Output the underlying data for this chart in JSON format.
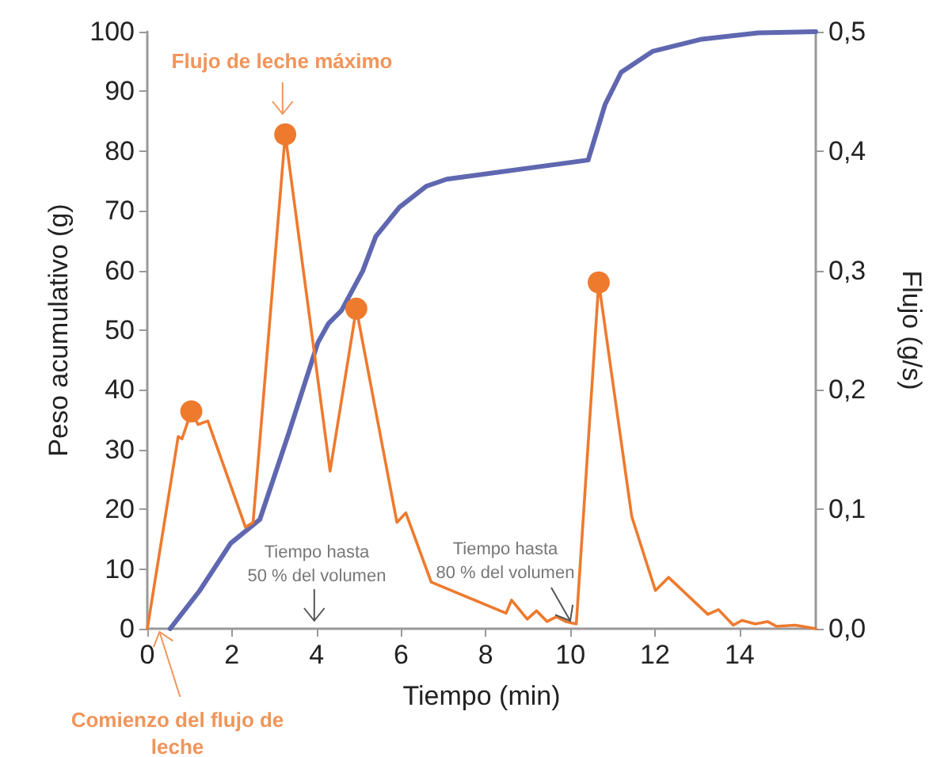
{
  "chart_data": {
    "type": "line",
    "xlabel": "Tiempo (min)",
    "ylabel": "Peso acumulativo (g)",
    "y2label": "Flujo (g/s)",
    "xlim": [
      0,
      15.8
    ],
    "xticks": [
      0,
      2,
      4,
      6,
      8,
      10,
      12,
      14
    ],
    "ylim": [
      0,
      100
    ],
    "yticks": [
      0,
      10,
      20,
      30,
      40,
      50,
      60,
      70,
      80,
      90,
      100
    ],
    "y2lim": [
      0,
      0.5
    ],
    "y2ticks": [
      {
        "value": 0,
        "label": "0,0"
      },
      {
        "value": 0.1,
        "label": "0,1"
      },
      {
        "value": 0.2,
        "label": "0,2"
      },
      {
        "value": 0.3,
        "label": "0,3"
      },
      {
        "value": 0.4,
        "label": "0,4"
      },
      {
        "value": 0.5,
        "label": "0,5"
      }
    ],
    "grid": false,
    "marker": "none",
    "line_style": "solid",
    "series": [
      {
        "color": "#5f67b0",
        "x": [
          0.54,
          1.23,
          1.97,
          2.66,
          3.35,
          4.03,
          4.28,
          4.59,
          5.09,
          5.4,
          5.96,
          6.59,
          7.08,
          10.42,
          10.82,
          11.2,
          11.94,
          13.07,
          14.44,
          15.8
        ],
        "values": [
          0,
          6.3,
          14.3,
          18.3,
          32.9,
          47.9,
          51.1,
          53.3,
          59.9,
          65.7,
          70.6,
          74.1,
          75.3,
          78.5,
          87.8,
          93.2,
          96.7,
          98.7,
          99.8,
          100
        ]
      },
      {
        "color": "#ee7a2e",
        "axis": "y2",
        "x": [
          0,
          0.73,
          0.82,
          1.04,
          1.2,
          1.43,
          2.32,
          2.5,
          3.26,
          4.32,
          4.94,
          5.9,
          6.11,
          6.71,
          8.48,
          8.61,
          8.98,
          9.2,
          9.45,
          9.67,
          9.89,
          10.14,
          10.67,
          11.45,
          12.01,
          12.32,
          13.25,
          13.5,
          13.85,
          14.06,
          14.37,
          14.66,
          14.87,
          15.31,
          15.8
        ],
        "values": [
          0,
          0.161,
          0.159,
          0.182,
          0.171,
          0.174,
          0.085,
          0.089,
          0.414,
          0.132,
          0.268,
          0.089,
          0.097,
          0.039,
          0.013,
          0.024,
          0.008,
          0.015,
          0.006,
          0.01,
          0.006,
          0.004,
          0.29,
          0.094,
          0.032,
          0.043,
          0.012,
          0.016,
          0.003,
          0.007,
          0.004,
          0.006,
          0.002,
          0.003,
          0
        ]
      },
      {
        "type": "scatter",
        "marker": "circle",
        "color": "#ee7a2e",
        "axis": "y2",
        "x": [
          1.04,
          3.26,
          4.94,
          10.67
        ],
        "values": [
          0.182,
          0.414,
          0.268,
          0.29
        ]
      }
    ],
    "annotations": [
      "Flujo de leche máximo",
      "Tiempo hasta\n50 % del volumen",
      "Tiempo hasta\n80 % del volumen",
      "Comienzo del flujo de\nleche"
    ]
  }
}
